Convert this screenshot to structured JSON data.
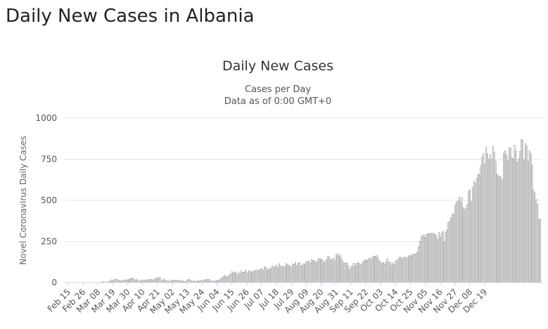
{
  "page": {
    "heading": "Daily New Cases in Albania"
  },
  "chart_data": {
    "type": "bar",
    "title": "Daily New Cases",
    "subtitle_lines": [
      "Cases per Day",
      "Data as of 0:00 GMT+0"
    ],
    "xlabel": "",
    "ylabel": "Novel Coronavirus Daily Cases",
    "ylim": [
      0,
      1000
    ],
    "y_ticks": [
      0,
      250,
      500,
      750,
      1000
    ],
    "grid": true,
    "legend": "none",
    "bar_fill": "#ffffff",
    "bar_stroke": "#999999",
    "x_start": "2020-02-15",
    "x_ticks": [
      "Feb 15",
      "Feb 26",
      "Mar 08",
      "Mar 19",
      "Mar 30",
      "Apr 10",
      "Apr 21",
      "May 02",
      "May 13",
      "May 24",
      "Jun 04",
      "Jun 15",
      "Jun 26",
      "Jul 07",
      "Jul 18",
      "Jul 29",
      "Aug 09",
      "Aug 20",
      "Aug 31",
      "Sep 11",
      "Sep 22",
      "Oct 03",
      "Oct 14",
      "Oct 25",
      "Nov 05",
      "Nov 16",
      "Nov 27",
      "Dec 08",
      "Dec 19"
    ],
    "values": [
      0,
      0,
      0,
      0,
      0,
      0,
      0,
      0,
      0,
      0,
      0,
      0,
      0,
      0,
      0,
      0,
      0,
      0,
      0,
      0,
      0,
      0,
      0,
      0,
      2,
      4,
      6,
      0,
      4,
      1,
      6,
      9,
      17,
      10,
      18,
      19,
      22,
      12,
      14,
      11,
      10,
      16,
      18,
      15,
      17,
      20,
      23,
      28,
      27,
      18,
      15,
      19,
      9,
      10,
      17,
      13,
      15,
      14,
      18,
      12,
      20,
      19,
      18,
      16,
      24,
      23,
      31,
      30,
      28,
      11,
      15,
      22,
      13,
      9,
      12,
      8,
      10,
      17,
      12,
      14,
      10,
      16,
      12,
      8,
      13,
      9,
      7,
      8,
      15,
      20,
      17,
      11,
      7,
      14,
      6,
      8,
      12,
      9,
      15,
      9,
      14,
      18,
      16,
      20,
      19,
      10,
      12,
      6,
      8,
      11,
      13,
      14,
      17,
      25,
      30,
      39,
      44,
      35,
      36,
      45,
      52,
      67,
      59,
      61,
      65,
      48,
      60,
      55,
      70,
      62,
      63,
      76,
      57,
      67,
      74,
      60,
      70,
      66,
      72,
      80,
      71,
      77,
      81,
      86,
      74,
      93,
      96,
      83,
      77,
      90,
      84,
      103,
      92,
      98,
      106,
      90,
      115,
      100,
      99,
      96,
      94,
      117,
      109,
      104,
      103,
      93,
      113,
      110,
      124,
      103,
      117,
      122,
      102,
      107,
      115,
      113,
      126,
      129,
      130,
      118,
      139,
      135,
      132,
      123,
      128,
      143,
      147,
      141,
      138,
      123,
      130,
      141,
      160,
      156,
      140,
      139,
      148,
      134,
      168,
      178,
      161,
      171,
      150,
      130,
      120,
      117,
      122,
      104,
      81,
      96,
      99,
      118,
      102,
      117,
      119,
      120,
      108,
      115,
      128,
      133,
      140,
      135,
      145,
      149,
      142,
      156,
      158,
      160,
      166,
      154,
      134,
      125,
      116,
      123,
      112,
      129,
      144,
      121,
      126,
      105,
      122,
      110,
      134,
      130,
      145,
      154,
      154,
      143,
      156,
      151,
      150,
      152,
      164,
      162,
      169,
      172,
      172,
      174,
      186,
      218,
      251,
      278,
      285,
      291,
      275,
      293,
      297,
      300,
      298,
      300,
      298,
      296,
      287,
      262,
      305,
      277,
      301,
      313,
      246,
      307,
      321,
      367,
      372,
      396,
      414,
      417,
      471,
      489,
      496,
      520,
      492,
      516,
      455,
      443,
      451,
      474,
      556,
      564,
      493,
      580,
      616,
      605,
      636,
      659,
      658,
      710,
      764,
      783,
      722,
      825,
      783,
      751,
      776,
      753,
      828,
      794,
      736,
      660,
      650,
      647,
      640,
      621,
      786,
      802,
      776,
      743,
      817,
      820,
      759,
      751,
      836,
      802,
      731,
      751,
      798,
      870,
      866,
      745,
      844,
      831,
      739,
      804,
      785,
      715,
      564,
      545,
      505,
      478,
      383,
      386
    ]
  }
}
